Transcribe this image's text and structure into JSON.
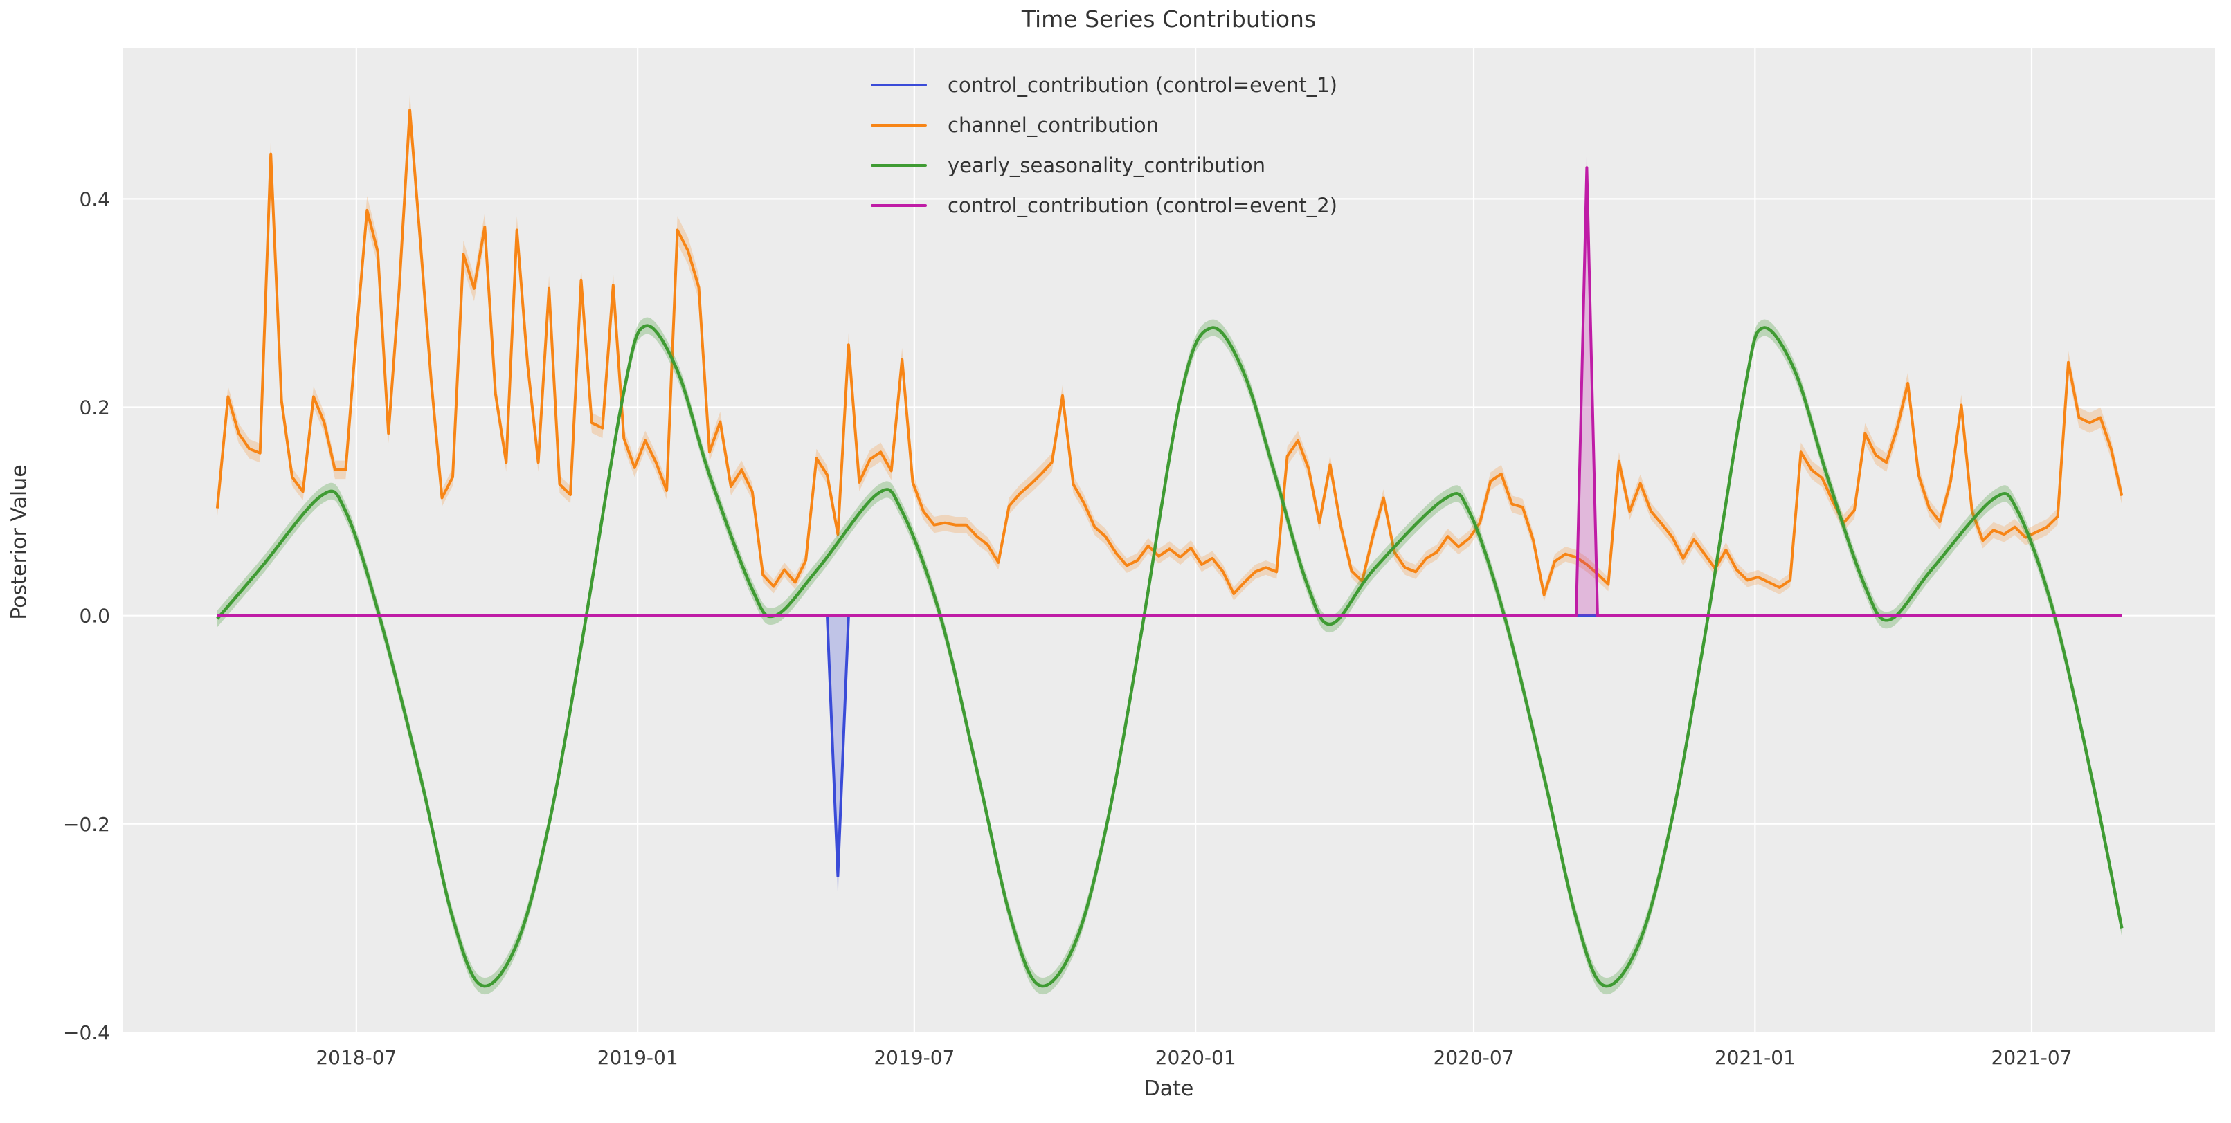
{
  "figure": {
    "background": "#ffffff",
    "axes_background": "#ececec",
    "grid_color": "#ffffff",
    "tick_color": "#3b3b3b"
  },
  "chart_data": {
    "type": "line",
    "title": "Time Series Contributions",
    "xlabel": "Date",
    "ylabel": "Posterior Value",
    "x_start_date": "2018-04-01",
    "x_step_days": 7,
    "n_points": 179,
    "xlim_days": [
      -62,
      1307
    ],
    "ylim": [
      -0.4,
      0.545
    ],
    "grid": true,
    "legend_position": "upper-center",
    "legend_frame": false,
    "xticks": [
      {
        "label": "2018-07",
        "days": 91
      },
      {
        "label": "2019-01",
        "days": 275
      },
      {
        "label": "2019-07",
        "days": 456
      },
      {
        "label": "2020-01",
        "days": 640
      },
      {
        "label": "2020-07",
        "days": 822
      },
      {
        "label": "2021-01",
        "days": 1006
      },
      {
        "label": "2021-07",
        "days": 1187
      }
    ],
    "yticks": [
      {
        "label": "0.4",
        "value": 0.4
      },
      {
        "label": "0.2",
        "value": 0.2
      },
      {
        "label": "0.0",
        "value": 0.0
      },
      {
        "label": "−0.2",
        "value": -0.2
      },
      {
        "label": "−0.4",
        "value": -0.4
      }
    ],
    "series": [
      {
        "name": "control_contribution (control=event_1)",
        "color": "#3a4bd8",
        "style": "spike",
        "baseline": 0,
        "spikes": [
          {
            "week": 58,
            "value": -0.25,
            "band_value": -0.272
          }
        ]
      },
      {
        "name": "channel_contribution",
        "color": "#f78516",
        "style": "weekly",
        "band": true,
        "values": [
          0.103,
          0.21,
          0.175,
          0.16,
          0.156,
          0.443,
          0.206,
          0.133,
          0.119,
          0.21,
          0.185,
          0.14,
          0.14,
          0.27,
          0.389,
          0.349,
          0.175,
          0.314,
          0.485,
          0.356,
          0.224,
          0.113,
          0.133,
          0.347,
          0.314,
          0.373,
          0.213,
          0.147,
          0.37,
          0.241,
          0.147,
          0.314,
          0.126,
          0.116,
          0.322,
          0.185,
          0.18,
          0.317,
          0.17,
          0.142,
          0.168,
          0.147,
          0.12,
          0.37,
          0.35,
          0.315,
          0.157,
          0.186,
          0.124,
          0.14,
          0.119,
          0.039,
          0.028,
          0.044,
          0.032,
          0.053,
          0.151,
          0.135,
          0.078,
          0.26,
          0.128,
          0.15,
          0.157,
          0.139,
          0.246,
          0.128,
          0.1,
          0.087,
          0.089,
          0.087,
          0.087,
          0.076,
          0.068,
          0.051,
          0.105,
          0.117,
          0.126,
          0.136,
          0.147,
          0.211,
          0.126,
          0.108,
          0.085,
          0.076,
          0.06,
          0.048,
          0.053,
          0.067,
          0.057,
          0.064,
          0.056,
          0.065,
          0.049,
          0.055,
          0.042,
          0.021,
          0.032,
          0.042,
          0.046,
          0.042,
          0.153,
          0.168,
          0.141,
          0.089,
          0.145,
          0.086,
          0.043,
          0.033,
          0.076,
          0.113,
          0.061,
          0.046,
          0.042,
          0.055,
          0.061,
          0.076,
          0.066,
          0.074,
          0.089,
          0.129,
          0.136,
          0.107,
          0.104,
          0.072,
          0.02,
          0.052,
          0.059,
          0.056,
          0.049,
          0.04,
          0.03,
          0.148,
          0.1,
          0.127,
          0.1,
          0.088,
          0.075,
          0.055,
          0.073,
          0.059,
          0.045,
          0.063,
          0.044,
          0.034,
          0.037,
          0.032,
          0.027,
          0.034,
          0.157,
          0.14,
          0.132,
          0.109,
          0.089,
          0.101,
          0.175,
          0.154,
          0.147,
          0.18,
          0.223,
          0.135,
          0.103,
          0.09,
          0.129,
          0.202,
          0.1,
          0.072,
          0.082,
          0.078,
          0.085,
          0.075,
          0.08,
          0.085,
          0.095,
          0.243,
          0.19,
          0.185,
          0.19,
          0.16,
          0.115
        ]
      },
      {
        "name": "yearly_seasonality_contribution",
        "color": "#3f9b33",
        "style": "smooth",
        "band_width": 0.008,
        "keypoints": [
          [
            "2018-04-01",
            -0.003
          ],
          [
            "2018-04-29",
            0.045
          ],
          [
            "2018-06-08",
            0.115
          ],
          [
            "2018-06-24",
            0.1
          ],
          [
            "2018-07-16",
            0.0
          ],
          [
            "2018-08-12",
            -0.155
          ],
          [
            "2018-09-02",
            -0.29
          ],
          [
            "2018-09-21",
            -0.355
          ],
          [
            "2018-10-14",
            -0.315
          ],
          [
            "2018-11-04",
            -0.2
          ],
          [
            "2018-11-25",
            -0.03
          ],
          [
            "2018-12-23",
            0.215
          ],
          [
            "2019-01-06",
            0.278
          ],
          [
            "2019-01-27",
            0.235
          ],
          [
            "2019-02-17",
            0.135
          ],
          [
            "2019-03-17",
            0.025
          ],
          [
            "2019-04-01",
            0.0
          ],
          [
            "2019-04-29",
            0.045
          ],
          [
            "2019-06-07",
            0.117
          ],
          [
            "2019-06-23",
            0.1
          ],
          [
            "2019-07-18",
            0.0
          ],
          [
            "2019-08-12",
            -0.155
          ],
          [
            "2019-09-02",
            -0.29
          ],
          [
            "2019-09-21",
            -0.355
          ],
          [
            "2019-10-14",
            -0.315
          ],
          [
            "2019-11-04",
            -0.2
          ],
          [
            "2019-11-25",
            -0.03
          ],
          [
            "2019-12-23",
            0.215
          ],
          [
            "2020-01-11",
            0.276
          ],
          [
            "2020-02-01",
            0.235
          ],
          [
            "2020-02-22",
            0.135
          ],
          [
            "2020-03-14",
            0.03
          ],
          [
            "2020-03-30",
            -0.008
          ],
          [
            "2020-04-27",
            0.045
          ],
          [
            "2020-06-12",
            0.112
          ],
          [
            "2020-06-28",
            0.1
          ],
          [
            "2020-07-21",
            0.0
          ],
          [
            "2020-08-16",
            -0.155
          ],
          [
            "2020-09-06",
            -0.29
          ],
          [
            "2020-09-24",
            -0.355
          ],
          [
            "2020-10-17",
            -0.315
          ],
          [
            "2020-11-07",
            -0.2
          ],
          [
            "2020-11-28",
            -0.03
          ],
          [
            "2020-12-25",
            0.215
          ],
          [
            "2021-01-06",
            0.276
          ],
          [
            "2021-01-27",
            0.235
          ],
          [
            "2021-02-17",
            0.135
          ],
          [
            "2021-03-14",
            0.028
          ],
          [
            "2021-03-30",
            -0.004
          ],
          [
            "2021-04-27",
            0.045
          ],
          [
            "2021-06-06",
            0.112
          ],
          [
            "2021-06-22",
            0.1
          ],
          [
            "2021-07-16",
            0.0
          ],
          [
            "2021-08-10",
            -0.16
          ],
          [
            "2021-08-29",
            -0.3
          ]
        ]
      },
      {
        "name": "control_contribution (control=event_2)",
        "color": "#bf1ca6",
        "style": "spike",
        "baseline": 0,
        "spikes": [
          {
            "week": 128,
            "value": 0.43,
            "band_value": 0.452
          }
        ]
      }
    ]
  }
}
